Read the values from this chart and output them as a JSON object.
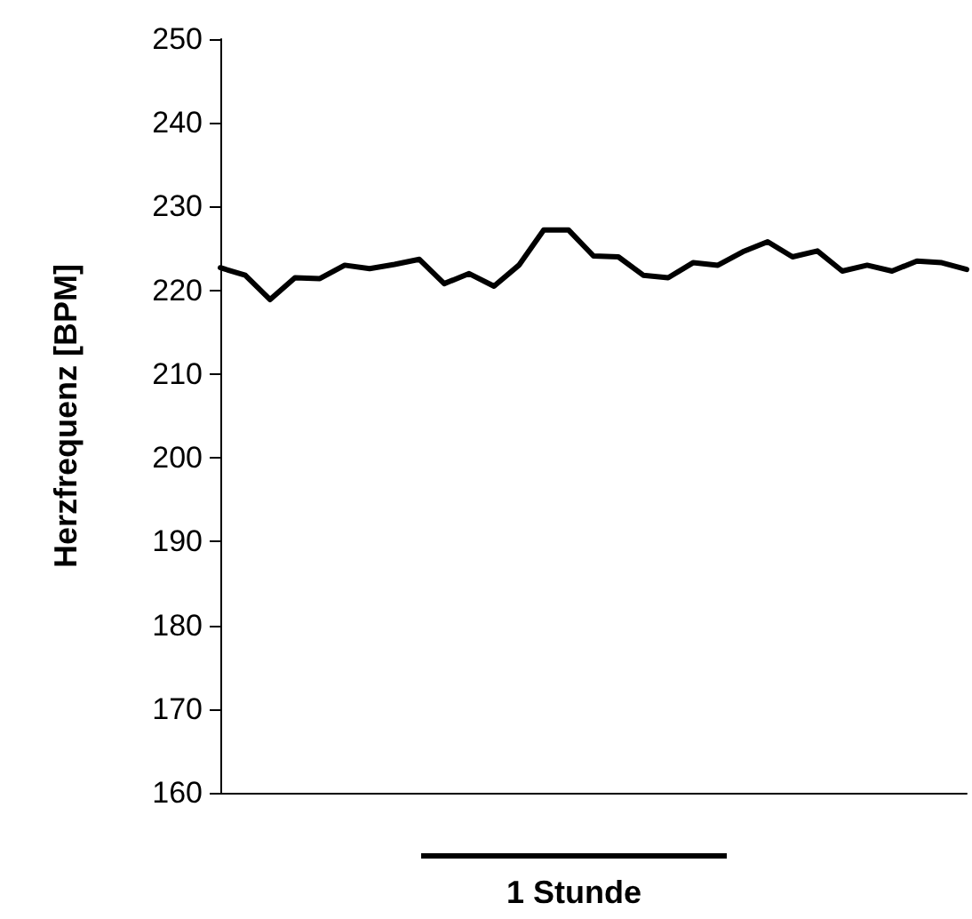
{
  "chart_data": {
    "type": "line",
    "ylabel": "Herzfrequenz [BPM]",
    "annotations": [
      "1 Stunde"
    ],
    "categories": [
      null,
      null,
      null,
      null,
      null,
      null,
      null,
      null,
      null,
      null,
      null,
      null,
      null,
      null,
      null,
      null,
      null,
      null,
      null,
      null,
      null,
      null,
      null,
      null,
      null,
      null,
      null,
      null,
      null,
      null,
      null
    ],
    "series": [
      {
        "color": "#000000",
        "values": [
          222.7,
          221.8,
          218.9,
          221.5,
          221.4,
          223.0,
          222.6,
          223.1,
          223.7,
          220.8,
          222.0,
          220.5,
          223.0,
          227.2,
          227.2,
          224.1,
          224.0,
          221.8,
          221.5,
          223.3,
          223.0,
          224.6,
          225.8,
          224.0,
          224.7,
          222.3,
          223.0,
          222.3,
          223.5,
          223.3,
          222.5
        ]
      }
    ],
    "ylim": [
      160,
      250
    ],
    "yticks": [
      160,
      170,
      180,
      190,
      200,
      210,
      220,
      230,
      240,
      250
    ],
    "grid": false,
    "marker": "none",
    "line_style": "solid"
  }
}
